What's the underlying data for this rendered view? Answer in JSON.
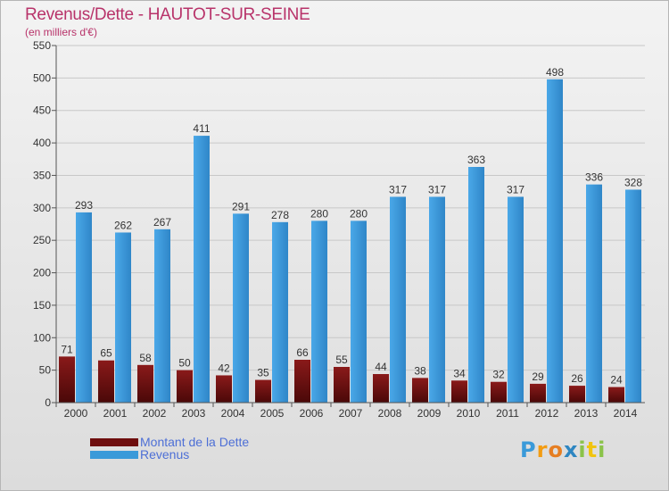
{
  "title": "Revenus/Dette - HAUTOT-SUR-SEINE",
  "subtitle": "(en milliers d'€)",
  "brand": "Proxiti",
  "colors": {
    "title": "#b8336a",
    "dette": "#7a1010",
    "revenus": "#3a9ad9",
    "legend_text": "#4d6fd6"
  },
  "legend": {
    "dette": "Montant de la Dette",
    "revenus": "Revenus"
  },
  "chart_data": {
    "type": "bar",
    "title": "Revenus/Dette - HAUTOT-SUR-SEINE",
    "ylabel": "(en milliers d'€)",
    "xlabel": "",
    "ylim": [
      0,
      550
    ],
    "yticks": [
      0,
      50,
      100,
      150,
      200,
      250,
      300,
      350,
      400,
      450,
      500,
      550
    ],
    "grid": true,
    "legend_position": "bottom-left",
    "categories": [
      "2000",
      "2001",
      "2002",
      "2003",
      "2004",
      "2005",
      "2006",
      "2007",
      "2008",
      "2009",
      "2010",
      "2011",
      "2012",
      "2013",
      "2014"
    ],
    "series": [
      {
        "name": "Montant de la Dette",
        "values": [
          71,
          65,
          58,
          50,
          42,
          35,
          66,
          55,
          44,
          38,
          34,
          32,
          29,
          26,
          24
        ]
      },
      {
        "name": "Revenus",
        "values": [
          293,
          262,
          267,
          411,
          291,
          278,
          280,
          280,
          317,
          317,
          363,
          317,
          498,
          336,
          328
        ]
      }
    ]
  }
}
